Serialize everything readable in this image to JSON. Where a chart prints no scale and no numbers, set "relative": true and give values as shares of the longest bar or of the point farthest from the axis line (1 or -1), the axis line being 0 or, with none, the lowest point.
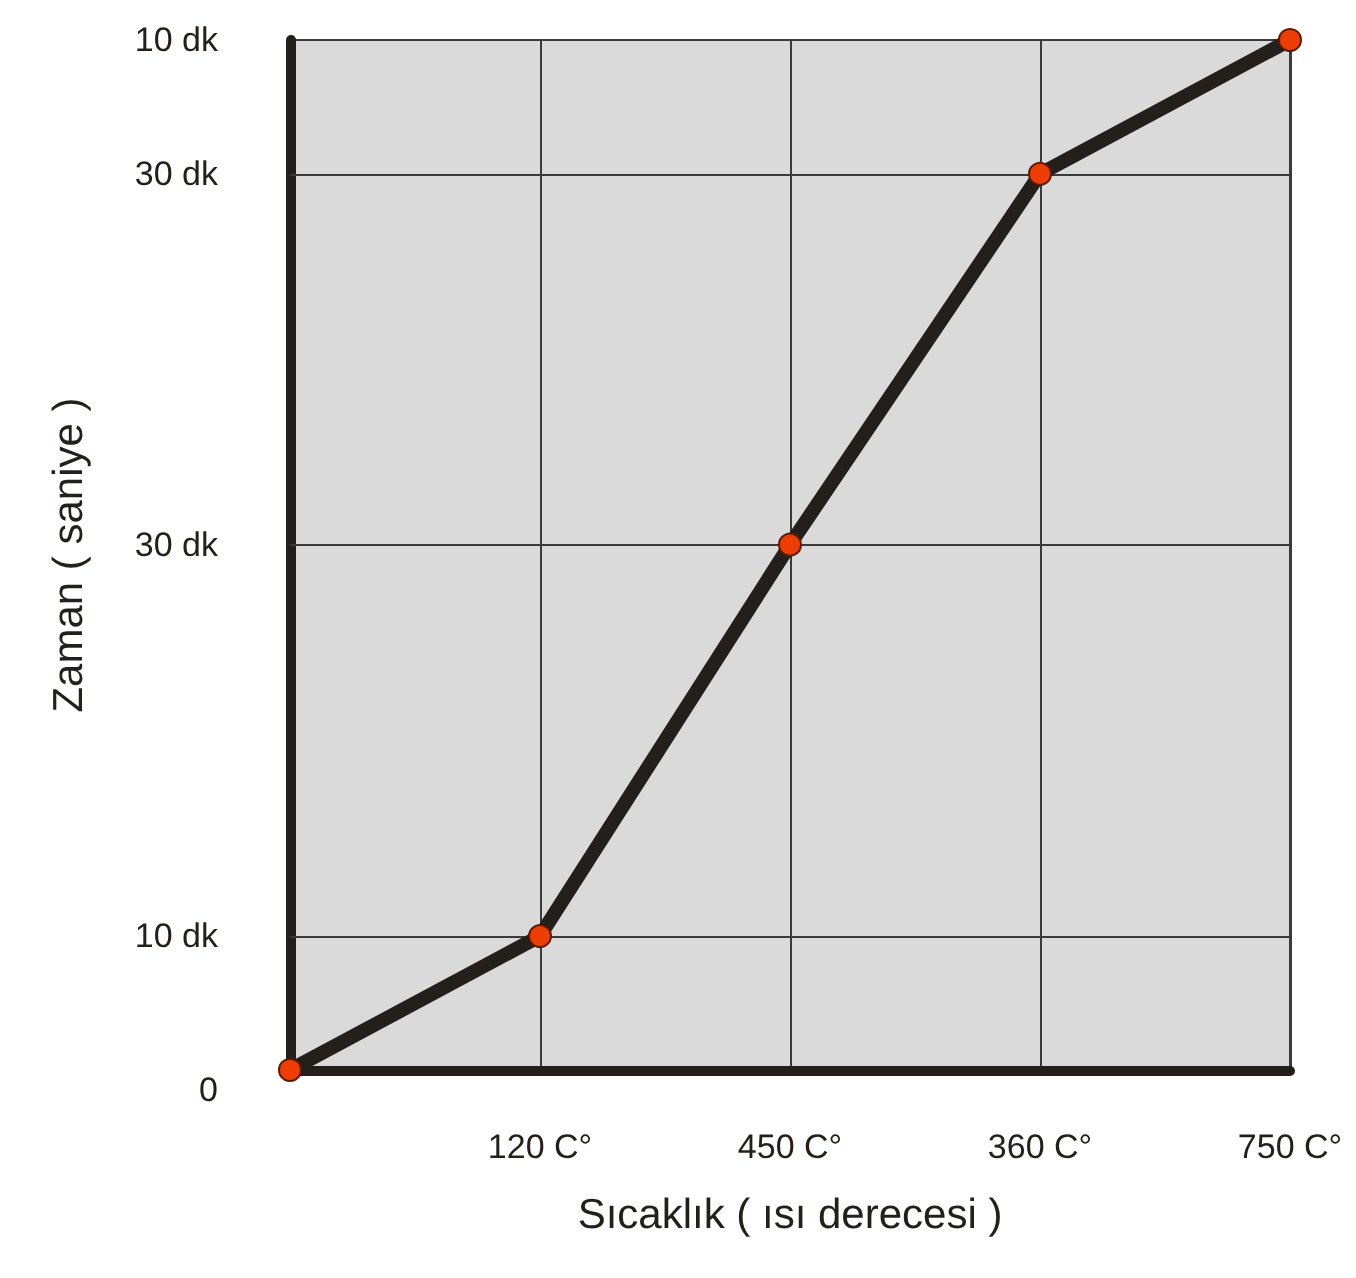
{
  "chart_data": {
    "type": "line",
    "xlabel": "Sıcaklık ( ısı derecesi )",
    "ylabel": "Zaman ( saniye )",
    "categories": [
      null,
      "120 C°",
      "450 C°",
      "360 C°",
      "750 C°"
    ],
    "relative": true,
    "series": [
      {
        "color": "#231f1a",
        "values": [
          0,
          0.13,
          0.51,
          0.87,
          1
        ]
      }
    ],
    "annotations": [
      "0",
      "10 dk"
    ],
    "ref_lines": [
      {
        "axis": "y",
        "value": 0.13,
        "label": "10 dk"
      },
      {
        "axis": "y",
        "value": 0.51,
        "label": "30 dk"
      },
      {
        "axis": "y",
        "value": 0.87,
        "label": "30 dk"
      }
    ],
    "grid": "x",
    "marker": "circle",
    "line_style": "solid"
  }
}
